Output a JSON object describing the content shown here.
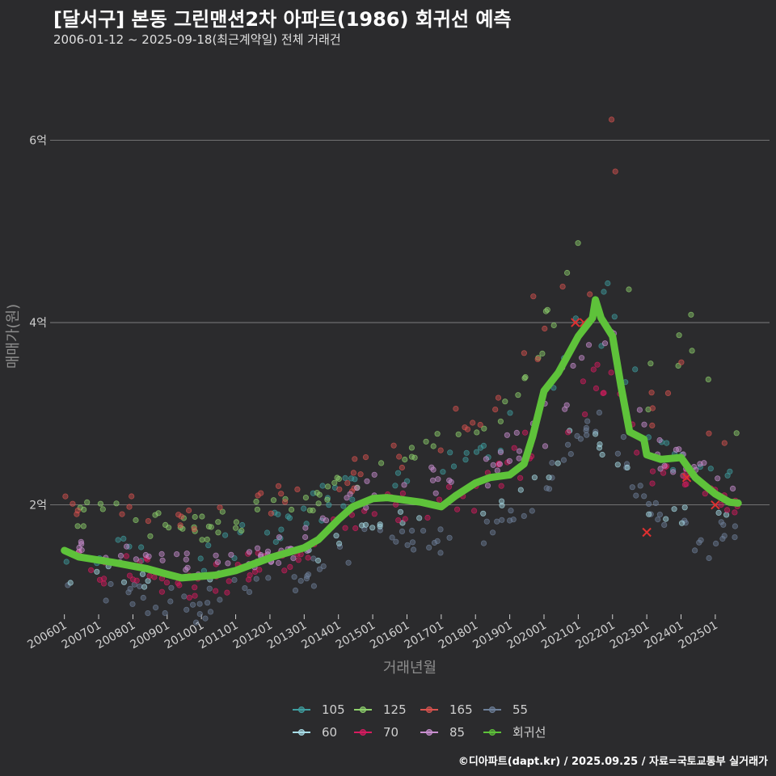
{
  "header": {
    "title": "[달서구] 본동 그린맨션2차 아파트(1986) 회귀선 예측",
    "subtitle": "2006-01-12 ~ 2025-09-18(최근계약일) 전체 거래건"
  },
  "footer": {
    "credit": "©디아파트(dapt.kr) / 2025.09.25 / 자료=국토교통부 실거래가"
  },
  "chart_data": {
    "type": "scatter",
    "xlabel": "거래년월",
    "ylabel": "매매가(원)",
    "x_start": "2006-01",
    "x_end": "2025-09",
    "xlim": [
      "2005-08",
      "2026-08"
    ],
    "ylim": [
      0.8,
      6.9
    ],
    "yticks": [
      {
        "value": 2,
        "label": "2억"
      },
      {
        "value": 4,
        "label": "4억"
      },
      {
        "value": 6,
        "label": "6억"
      }
    ],
    "xticks": [
      "200601",
      "200701",
      "200801",
      "200901",
      "201001",
      "201101",
      "201201",
      "201301",
      "201401",
      "201501",
      "201601",
      "201701",
      "201801",
      "201901",
      "202001",
      "202101",
      "202201",
      "202301",
      "202401",
      "202501"
    ],
    "grid": "horizontal",
    "legend_position": "bottom",
    "series": [
      {
        "name": "105",
        "color": "#3f9ea0",
        "band": [
          [
            2006.0,
            1.35,
            1.7
          ],
          [
            2010.0,
            1.2,
            1.55
          ],
          [
            2013.0,
            1.65,
            2.15
          ],
          [
            2015.0,
            2.1,
            2.4
          ],
          [
            2018.0,
            2.3,
            2.65
          ],
          [
            2020.0,
            2.9,
            3.7
          ],
          [
            2021.0,
            3.7,
            4.3
          ],
          [
            2022.0,
            3.6,
            4.5
          ],
          [
            2023.0,
            2.5,
            3.0
          ],
          [
            2024.0,
            2.3,
            2.6
          ],
          [
            2025.7,
            2.2,
            2.5
          ]
        ]
      },
      {
        "name": "125",
        "color": "#8ed16c",
        "band": [
          [
            2006.0,
            1.75,
            2.1
          ],
          [
            2010.0,
            1.6,
            1.9
          ],
          [
            2013.0,
            1.9,
            2.2
          ],
          [
            2015.0,
            2.1,
            2.5
          ],
          [
            2017.0,
            2.5,
            2.8
          ],
          [
            2018.0,
            2.7,
            3.0
          ],
          [
            2019.0,
            2.9,
            3.2
          ],
          [
            2020.0,
            3.6,
            4.2
          ],
          [
            2021.0,
            4.2,
            4.9
          ],
          [
            2022.0,
            4.3,
            6.0
          ],
          [
            2023.0,
            2.9,
            3.6
          ],
          [
            2024.0,
            3.4,
            4.5
          ],
          [
            2025.7,
            2.4,
            2.9
          ]
        ]
      },
      {
        "name": "165",
        "color": "#d9534f",
        "band": [
          [
            2006.0,
            1.9,
            2.2
          ],
          [
            2010.0,
            1.7,
            2.0
          ],
          [
            2013.0,
            2.0,
            2.3
          ],
          [
            2015.0,
            2.2,
            2.6
          ],
          [
            2018.0,
            2.8,
            3.2
          ],
          [
            2020.0,
            3.6,
            4.5
          ],
          [
            2021.0,
            4.0,
            4.6
          ],
          [
            2022.0,
            4.5,
            6.3
          ],
          [
            2023.0,
            2.8,
            3.5
          ],
          [
            2024.0,
            3.0,
            3.8
          ],
          [
            2025.7,
            2.4,
            3.0
          ]
        ]
      },
      {
        "name": "55",
        "color": "#6d7f99",
        "band": [
          [
            2006.0,
            0.95,
            1.3
          ],
          [
            2010.0,
            0.7,
            1.05
          ],
          [
            2011.0,
            0.85,
            1.2
          ],
          [
            2013.0,
            1.0,
            1.4
          ],
          [
            2015.0,
            1.5,
            1.8
          ],
          [
            2017.0,
            1.45,
            1.75
          ],
          [
            2019.0,
            1.6,
            1.95
          ],
          [
            2020.0,
            1.9,
            2.3
          ],
          [
            2021.0,
            2.7,
            3.0
          ],
          [
            2022.0,
            2.7,
            3.2
          ],
          [
            2023.0,
            1.8,
            2.1
          ],
          [
            2024.0,
            1.45,
            1.9
          ],
          [
            2025.7,
            1.35,
            1.8
          ]
        ]
      },
      {
        "name": "60",
        "color": "#a8dde8",
        "band": [
          [
            2006.0,
            1.1,
            1.4
          ],
          [
            2010.0,
            0.95,
            1.25
          ],
          [
            2013.0,
            1.15,
            1.5
          ],
          [
            2015.0,
            1.65,
            1.9
          ],
          [
            2018.0,
            1.7,
            2.0
          ],
          [
            2020.0,
            2.2,
            2.5
          ],
          [
            2021.0,
            2.8,
            3.1
          ],
          [
            2023.0,
            1.85,
            2.2
          ],
          [
            2025.7,
            1.7,
            2.0
          ]
        ]
      },
      {
        "name": "70",
        "color": "#d81b60",
        "band": [
          [
            2006.0,
            1.2,
            1.6
          ],
          [
            2010.0,
            0.95,
            1.3
          ],
          [
            2013.0,
            1.3,
            1.7
          ],
          [
            2015.0,
            1.8,
            2.1
          ],
          [
            2018.0,
            1.9,
            2.3
          ],
          [
            2020.0,
            2.5,
            3.0
          ],
          [
            2021.0,
            2.9,
            3.4
          ],
          [
            2022.0,
            3.3,
            3.7
          ],
          [
            2023.0,
            2.2,
            2.5
          ],
          [
            2024.0,
            2.2,
            2.4
          ],
          [
            2025.7,
            1.85,
            2.05
          ]
        ]
      },
      {
        "name": "85",
        "color": "#c98fd0",
        "band": [
          [
            2006.0,
            1.45,
            1.65
          ],
          [
            2010.0,
            1.2,
            1.45
          ],
          [
            2013.0,
            1.4,
            1.75
          ],
          [
            2015.0,
            2.0,
            2.35
          ],
          [
            2018.0,
            2.1,
            2.5
          ],
          [
            2020.0,
            2.6,
            3.2
          ],
          [
            2021.0,
            3.3,
            3.8
          ],
          [
            2022.0,
            3.8,
            4.2
          ],
          [
            2023.0,
            2.4,
            2.8
          ],
          [
            2024.0,
            2.3,
            2.6
          ],
          [
            2025.7,
            2.0,
            2.3
          ]
        ]
      },
      {
        "name": "회귀선",
        "color": "#5ec23a",
        "line": [
          [
            "2006-01",
            1.5
          ],
          [
            "2006-06",
            1.43
          ],
          [
            "2007-06",
            1.37
          ],
          [
            "2008-06",
            1.3
          ],
          [
            "2009-01",
            1.24
          ],
          [
            "2009-06",
            1.2
          ],
          [
            "2010-06",
            1.23
          ],
          [
            "2011-01",
            1.28
          ],
          [
            "2012-01",
            1.42
          ],
          [
            "2013-01",
            1.53
          ],
          [
            "2013-06",
            1.62
          ],
          [
            "2014-01",
            1.84
          ],
          [
            "2014-06",
            1.98
          ],
          [
            "2015-01",
            2.07
          ],
          [
            "2015-06",
            2.08
          ],
          [
            "2016-01",
            2.05
          ],
          [
            "2016-06",
            2.03
          ],
          [
            "2017-01",
            1.98
          ],
          [
            "2017-06",
            2.1
          ],
          [
            "2018-01",
            2.24
          ],
          [
            "2018-06",
            2.3
          ],
          [
            "2019-01",
            2.33
          ],
          [
            "2019-06",
            2.45
          ],
          [
            "2019-09",
            2.75
          ],
          [
            "2020-01",
            3.25
          ],
          [
            "2020-06",
            3.45
          ],
          [
            "2021-01",
            3.85
          ],
          [
            "2021-06",
            4.05
          ],
          [
            "2021-07",
            4.25
          ],
          [
            "2021-09",
            4.05
          ],
          [
            "2022-01",
            3.85
          ],
          [
            "2022-04",
            3.3
          ],
          [
            "2022-07",
            2.8
          ],
          [
            "2022-12",
            2.72
          ],
          [
            "2023-01",
            2.55
          ],
          [
            "2023-06",
            2.5
          ],
          [
            "2024-01",
            2.52
          ],
          [
            "2024-06",
            2.3
          ],
          [
            "2025-01",
            2.12
          ],
          [
            "2025-06",
            2.03
          ],
          [
            "2025-09",
            2.02
          ]
        ]
      }
    ],
    "highlight_points": [
      {
        "x": "2020-12",
        "y": 4.0
      },
      {
        "x": "2021-03",
        "y": 4.0
      },
      {
        "x": "2023-01",
        "y": 1.7
      },
      {
        "x": "2024-03",
        "y": 2.3
      },
      {
        "x": "2025-01",
        "y": 2.0
      }
    ]
  }
}
